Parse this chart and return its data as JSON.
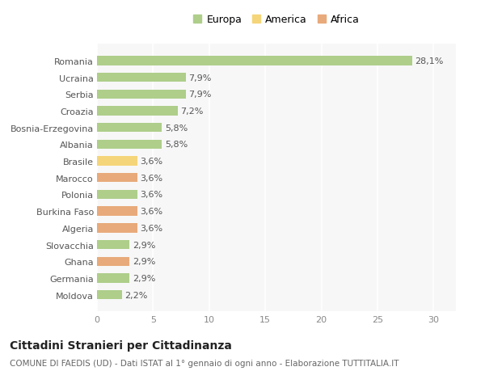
{
  "categories": [
    "Moldova",
    "Germania",
    "Ghana",
    "Slovacchia",
    "Algeria",
    "Burkina Faso",
    "Polonia",
    "Marocco",
    "Brasile",
    "Albania",
    "Bosnia-Erzegovina",
    "Croazia",
    "Serbia",
    "Ucraina",
    "Romania"
  ],
  "values": [
    2.2,
    2.9,
    2.9,
    2.9,
    3.6,
    3.6,
    3.6,
    3.6,
    3.6,
    5.8,
    5.8,
    7.2,
    7.9,
    7.9,
    28.1
  ],
  "continent": [
    "Europa",
    "Europa",
    "Africa",
    "Europa",
    "Africa",
    "Africa",
    "Europa",
    "Africa",
    "America",
    "Europa",
    "Europa",
    "Europa",
    "Europa",
    "Europa",
    "Europa"
  ],
  "color_europa": "#aece8a",
  "color_america": "#f5d57a",
  "color_africa": "#e8aa7a",
  "xlim": [
    0,
    32
  ],
  "xticks": [
    0,
    5,
    10,
    15,
    20,
    25,
    30
  ],
  "title": "Cittadini Stranieri per Cittadinanza",
  "subtitle": "COMUNE DI FAEDIS (UD) - Dati ISTAT al 1° gennaio di ogni anno - Elaborazione TUTTITALIA.IT",
  "bg_color": "#ffffff",
  "bar_height": 0.55,
  "value_labels": [
    "2,2%",
    "2,9%",
    "2,9%",
    "2,9%",
    "3,6%",
    "3,6%",
    "3,6%",
    "3,6%",
    "3,6%",
    "5,8%",
    "5,8%",
    "7,2%",
    "7,9%",
    "7,9%",
    "28,1%"
  ],
  "legend_marker_size": 10,
  "ytick_fontsize": 8,
  "xtick_fontsize": 8,
  "value_fontsize": 8,
  "title_fontsize": 10,
  "subtitle_fontsize": 7.5
}
